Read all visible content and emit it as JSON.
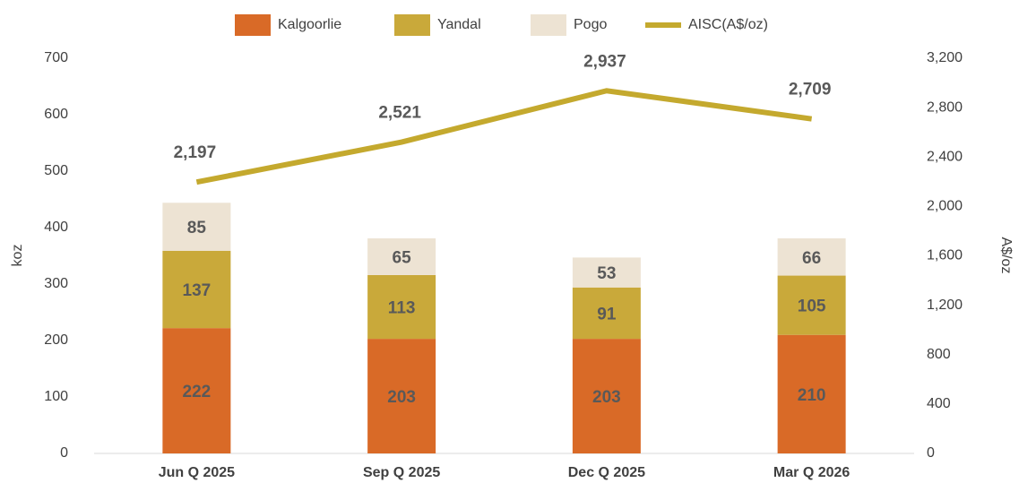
{
  "chart_data": {
    "type": "bar",
    "stacked": true,
    "categories": [
      "Jun Q 2025",
      "Sep Q 2025",
      "Dec Q 2025",
      "Mar Q 2026"
    ],
    "series": [
      {
        "name": "Kalgoorlie",
        "color": "#d96a27",
        "values": [
          222,
          203,
          203,
          210
        ]
      },
      {
        "name": "Yandal",
        "color": "#c9a93a",
        "values": [
          137,
          113,
          91,
          105
        ]
      },
      {
        "name": "Pogo",
        "color": "#ede3d3",
        "values": [
          85,
          65,
          53,
          66
        ]
      },
      {
        "name": "AISC(A$/oz)",
        "color": "#c4a92e",
        "type": "line",
        "axis": "y2",
        "values": [
          2197,
          2521,
          2937,
          2709
        ],
        "value_labels": [
          "2,197",
          "2,521",
          "2,937",
          "2,709"
        ]
      }
    ],
    "y_label": "koz",
    "y2_label": "A$/oz",
    "ylim": [
      0,
      700
    ],
    "yticks": [
      0,
      100,
      200,
      300,
      400,
      500,
      600,
      700
    ],
    "y2lim": [
      0,
      3200
    ],
    "y2ticks": [
      0,
      {
        "value": 400,
        "label": "400"
      },
      {
        "value": 800,
        "label": "800"
      },
      {
        "value": 1200,
        "label": "1,200"
      },
      {
        "value": 1600,
        "label": "1,600"
      },
      {
        "value": 2000,
        "label": "2,000"
      },
      {
        "value": 2400,
        "label": "2,400"
      },
      {
        "value": 2800,
        "label": "2,800"
      },
      {
        "value": 3200,
        "label": "3,200"
      }
    ],
    "grid": false,
    "legend": "top"
  }
}
